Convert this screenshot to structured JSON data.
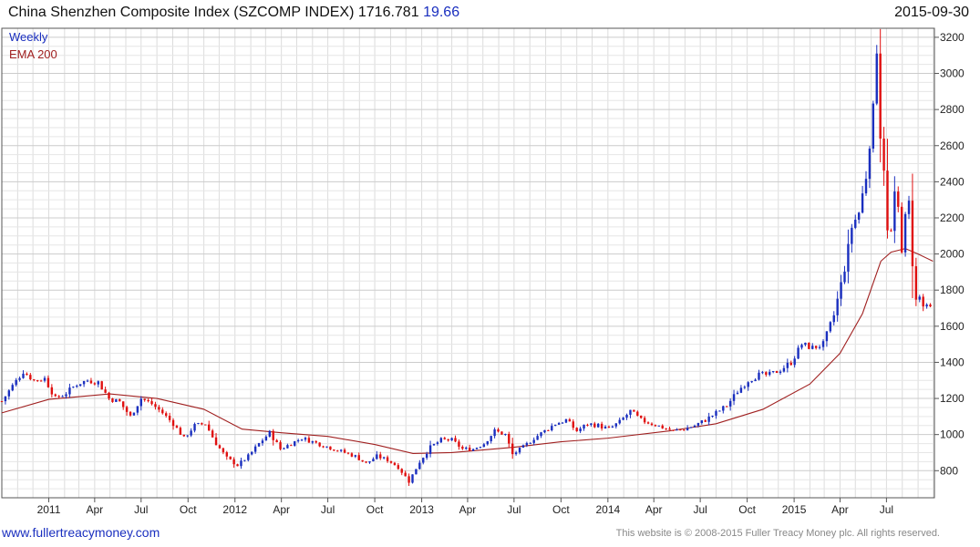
{
  "header": {
    "title": "China Shenzhen Composite Index (SZCOMP INDEX) 1716.781",
    "change": "19.66",
    "date": "2015-09-30"
  },
  "footer": {
    "site": "www.fullertreacymoney.com",
    "copyright": "This website is © 2008-2015 Fuller Treacy Money plc. All rights reserved."
  },
  "colors": {
    "up": "#1a2fbf",
    "down": "#e01010",
    "ema": "#a02020",
    "grid": "#dcdcdc"
  },
  "chart_data": {
    "type": "line",
    "legend": [
      "Weekly",
      "EMA 200"
    ],
    "legend_position": "top-left",
    "x_tick_labels": [
      "2011",
      "Apr",
      "Jul",
      "Oct",
      "2012",
      "Apr",
      "Jul",
      "Oct",
      "2013",
      "Apr",
      "Jul",
      "Oct",
      "2014",
      "Apr",
      "Jul",
      "Oct",
      "2015",
      "Apr",
      "Jul"
    ],
    "x_tick_dates": [
      "2011-01-01",
      "2011-04-01",
      "2011-07-01",
      "2011-10-01",
      "2012-01-01",
      "2012-04-01",
      "2012-07-01",
      "2012-10-01",
      "2013-01-01",
      "2013-04-01",
      "2013-07-01",
      "2013-10-01",
      "2014-01-01",
      "2014-04-01",
      "2014-07-01",
      "2014-10-01",
      "2015-01-01",
      "2015-04-01",
      "2015-07-01"
    ],
    "xlim": [
      "2010-10-01",
      "2015-10-03"
    ],
    "y_ticks": [
      800,
      1000,
      1200,
      1400,
      1600,
      1800,
      2000,
      2200,
      2400,
      2600,
      2800,
      3000,
      3200
    ],
    "ylim": [
      650,
      3250
    ],
    "y_axis_position": "right",
    "grid": true,
    "series": [
      {
        "name": "Weekly",
        "kind": "close",
        "points": [
          [
            "2010-10-01",
            1185
          ],
          [
            "2010-10-22",
            1270
          ],
          [
            "2010-11-12",
            1350
          ],
          [
            "2010-12-03",
            1300
          ],
          [
            "2010-12-24",
            1310
          ],
          [
            "2011-01-14",
            1200
          ],
          [
            "2011-02-04",
            1230
          ],
          [
            "2011-02-25",
            1280
          ],
          [
            "2011-03-18",
            1300
          ],
          [
            "2011-04-08",
            1290
          ],
          [
            "2011-04-29",
            1200
          ],
          [
            "2011-05-20",
            1180
          ],
          [
            "2011-06-10",
            1100
          ],
          [
            "2011-07-01",
            1200
          ],
          [
            "2011-07-22",
            1170
          ],
          [
            "2011-08-12",
            1120
          ],
          [
            "2011-09-02",
            1060
          ],
          [
            "2011-09-23",
            980
          ],
          [
            "2011-10-14",
            1050
          ],
          [
            "2011-11-04",
            1060
          ],
          [
            "2011-11-25",
            950
          ],
          [
            "2011-12-16",
            870
          ],
          [
            "2012-01-06",
            830
          ],
          [
            "2012-01-27",
            880
          ],
          [
            "2012-02-17",
            950
          ],
          [
            "2012-03-09",
            1010
          ],
          [
            "2012-03-30",
            920
          ],
          [
            "2012-04-20",
            950
          ],
          [
            "2012-05-11",
            980
          ],
          [
            "2012-06-01",
            960
          ],
          [
            "2012-06-22",
            940
          ],
          [
            "2012-07-13",
            920
          ],
          [
            "2012-08-03",
            900
          ],
          [
            "2012-08-24",
            880
          ],
          [
            "2012-09-14",
            840
          ],
          [
            "2012-10-05",
            880
          ],
          [
            "2012-10-26",
            860
          ],
          [
            "2012-11-16",
            820
          ],
          [
            "2012-12-07",
            740
          ],
          [
            "2012-12-28",
            850
          ],
          [
            "2013-01-18",
            930
          ],
          [
            "2013-02-08",
            970
          ],
          [
            "2013-03-01",
            970
          ],
          [
            "2013-03-22",
            920
          ],
          [
            "2013-04-12",
            920
          ],
          [
            "2013-05-03",
            950
          ],
          [
            "2013-05-24",
            1020
          ],
          [
            "2013-06-14",
            1000
          ],
          [
            "2013-06-28",
            890
          ],
          [
            "2013-07-19",
            930
          ],
          [
            "2013-08-09",
            980
          ],
          [
            "2013-08-30",
            1020
          ],
          [
            "2013-09-20",
            1060
          ],
          [
            "2013-10-11",
            1080
          ],
          [
            "2013-11-01",
            1020
          ],
          [
            "2013-11-22",
            1060
          ],
          [
            "2013-12-13",
            1050
          ],
          [
            "2014-01-03",
            1030
          ],
          [
            "2014-01-24",
            1070
          ],
          [
            "2014-02-14",
            1130
          ],
          [
            "2014-03-07",
            1080
          ],
          [
            "2014-03-28",
            1060
          ],
          [
            "2014-04-18",
            1040
          ],
          [
            "2014-05-09",
            1020
          ],
          [
            "2014-05-30",
            1030
          ],
          [
            "2014-06-20",
            1050
          ],
          [
            "2014-07-11",
            1080
          ],
          [
            "2014-08-01",
            1120
          ],
          [
            "2014-08-22",
            1160
          ],
          [
            "2014-09-12",
            1240
          ],
          [
            "2014-10-03",
            1300
          ],
          [
            "2014-10-24",
            1330
          ],
          [
            "2014-11-14",
            1330
          ],
          [
            "2014-12-05",
            1360
          ],
          [
            "2014-12-26",
            1400
          ],
          [
            "2015-01-16",
            1500
          ],
          [
            "2015-02-06",
            1480
          ],
          [
            "2015-02-27",
            1500
          ],
          [
            "2015-03-20",
            1660
          ],
          [
            "2015-04-10",
            1920
          ],
          [
            "2015-04-24",
            2150
          ],
          [
            "2015-05-08",
            2230
          ],
          [
            "2015-05-22",
            2430
          ],
          [
            "2015-06-05",
            2800
          ],
          [
            "2015-06-12",
            3140
          ],
          [
            "2015-06-19",
            2660
          ],
          [
            "2015-06-26",
            2480
          ],
          [
            "2015-07-03",
            2120
          ],
          [
            "2015-07-10",
            2120
          ],
          [
            "2015-07-17",
            2320
          ],
          [
            "2015-07-24",
            2250
          ],
          [
            "2015-07-31",
            2030
          ],
          [
            "2015-08-07",
            2200
          ],
          [
            "2015-08-14",
            2280
          ],
          [
            "2015-08-21",
            1950
          ],
          [
            "2015-08-28",
            1740
          ],
          [
            "2015-09-04",
            1760
          ],
          [
            "2015-09-11",
            1710
          ],
          [
            "2015-09-18",
            1700
          ],
          [
            "2015-09-25",
            1697
          ],
          [
            "2015-09-30",
            1716.781
          ]
        ]
      },
      {
        "name": "EMA 200",
        "kind": "line",
        "points": [
          [
            "2010-10-01",
            1120
          ],
          [
            "2011-01-01",
            1195
          ],
          [
            "2011-05-01",
            1225
          ],
          [
            "2011-08-01",
            1200
          ],
          [
            "2011-11-01",
            1140
          ],
          [
            "2012-01-15",
            1030
          ],
          [
            "2012-04-01",
            1010
          ],
          [
            "2012-07-01",
            990
          ],
          [
            "2012-10-01",
            945
          ],
          [
            "2012-12-15",
            895
          ],
          [
            "2013-03-01",
            900
          ],
          [
            "2013-07-01",
            930
          ],
          [
            "2013-10-01",
            960
          ],
          [
            "2014-01-01",
            980
          ],
          [
            "2014-05-01",
            1020
          ],
          [
            "2014-08-01",
            1060
          ],
          [
            "2014-11-01",
            1140
          ],
          [
            "2015-02-01",
            1280
          ],
          [
            "2015-04-01",
            1450
          ],
          [
            "2015-05-15",
            1670
          ],
          [
            "2015-06-20",
            1960
          ],
          [
            "2015-07-10",
            2010
          ],
          [
            "2015-08-07",
            2030
          ],
          [
            "2015-09-01",
            2000
          ],
          [
            "2015-09-30",
            1960
          ]
        ]
      }
    ]
  }
}
